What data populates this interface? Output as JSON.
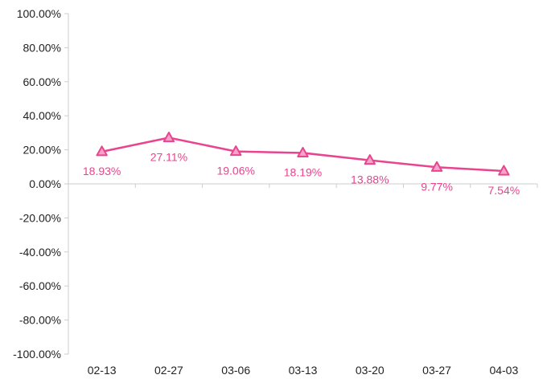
{
  "chart_data": {
    "type": "line",
    "categories": [
      "02-13",
      "02-27",
      "03-06",
      "03-13",
      "03-20",
      "03-27",
      "04-03"
    ],
    "series": [
      {
        "values": [
          18.93,
          27.11,
          19.06,
          18.19,
          13.88,
          9.77,
          7.54
        ],
        "labels": [
          "18.93%",
          "27.11%",
          "19.06%",
          "18.19%",
          "13.88%",
          "9.77%",
          "7.54%"
        ],
        "color": "#e8448f",
        "marker": "triangle"
      }
    ],
    "ylim": [
      -100,
      100
    ],
    "yticks": [
      100,
      80,
      60,
      40,
      20,
      0,
      -20,
      -40,
      -60,
      -80,
      -100
    ],
    "ytick_labels": [
      "100.00%",
      "80.00%",
      "60.00%",
      "40.00%",
      "20.00%",
      "0.00%",
      "-20.00%",
      "-40.00%",
      "-60.00%",
      "-80.00%",
      "-100.00%"
    ],
    "grid": false,
    "colors": {
      "line": "#e8448f",
      "marker_fill": "#f7a3c8",
      "axis": "#cccccc",
      "label": "#e8448f"
    }
  }
}
